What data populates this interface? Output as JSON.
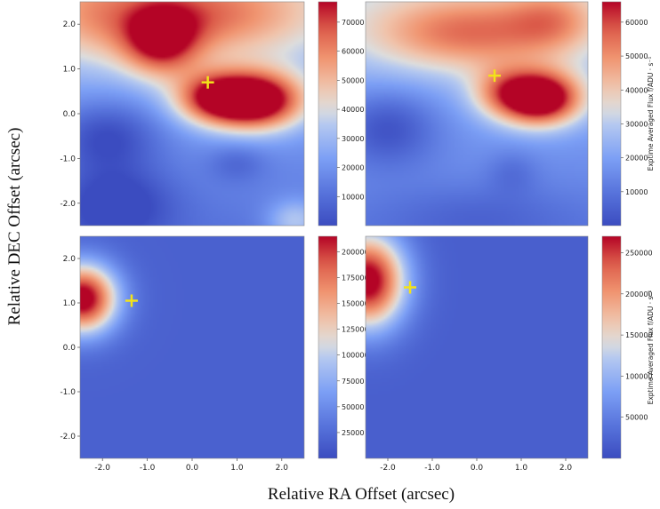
{
  "figure": {
    "xlabel": "Relative RA Offset (arcsec)",
    "ylabel": "Relative DEC Offset (arcsec)",
    "colorbar_label": "Exptime Averaged Flux f/ADU · s⁻¹",
    "colormap": "coolwarm",
    "marker_color": "#f2e21a"
  },
  "chart_data": [
    {
      "type": "heatmap",
      "panel": "top-left",
      "xlim": [
        -2.5,
        2.5
      ],
      "ylim": [
        -2.5,
        2.5
      ],
      "xticks": [],
      "xticklabels": [],
      "yticks": [
        2.0,
        1.0,
        0.0,
        -1.0,
        -2.0
      ],
      "yticklabels": [
        "2.0",
        "1.0",
        "0.0",
        "-1.0",
        "-2.0"
      ],
      "colorbar_range": [
        0,
        77000
      ],
      "colorbar_ticks": [
        10000,
        20000,
        30000,
        40000,
        50000,
        60000,
        70000
      ],
      "colorbar_ticklabels": [
        "10000",
        "20000",
        "30000",
        "40000",
        "50000",
        "60000",
        "70000"
      ],
      "colorbar_label": "",
      "marker": {
        "x": 0.35,
        "y": 0.7
      },
      "sources": [
        {
          "x": 1.4,
          "y": 0.3,
          "sx": 0.75,
          "sy": 0.45,
          "amp": 0.95
        },
        {
          "x": 0.4,
          "y": 0.35,
          "sx": 0.6,
          "sy": 0.4,
          "amp": 0.5
        },
        {
          "x": -0.7,
          "y": 1.6,
          "sx": 0.6,
          "sy": 0.55,
          "amp": 0.55
        },
        {
          "x": 0.2,
          "y": 2.2,
          "sx": 1.8,
          "sy": 0.7,
          "amp": 0.45
        },
        {
          "x": -2.4,
          "y": 2.2,
          "sx": 0.9,
          "sy": 0.8,
          "amp": 0.2
        },
        {
          "x": 2.3,
          "y": -2.4,
          "sx": 0.45,
          "sy": 0.35,
          "amp": 0.28
        }
      ],
      "dips": [
        {
          "x": -1.9,
          "y": -0.5,
          "sx": 0.8,
          "sy": 0.55,
          "amp": 0.25
        },
        {
          "x": -1.7,
          "y": -2.0,
          "sx": 0.9,
          "sy": 0.6,
          "amp": 0.25
        },
        {
          "x": 1.0,
          "y": -1.1,
          "sx": 0.45,
          "sy": 0.3,
          "amp": 0.12
        }
      ],
      "base": 0.28,
      "gradient": 0.05
    },
    {
      "type": "heatmap",
      "panel": "top-right",
      "xlim": [
        -2.5,
        2.5
      ],
      "ylim": [
        -2.5,
        2.5
      ],
      "xticks": [],
      "xticklabels": [],
      "yticks": [],
      "yticklabels": [],
      "colorbar_range": [
        0,
        66000
      ],
      "colorbar_ticks": [
        10000,
        20000,
        30000,
        40000,
        50000,
        60000
      ],
      "colorbar_ticklabels": [
        "10000",
        "20000",
        "30000",
        "40000",
        "50000",
        "60000"
      ],
      "colorbar_label": "Exptime Averaged Flux f/ADU · s⁻¹",
      "marker": {
        "x": 0.4,
        "y": 0.85
      },
      "sources": [
        {
          "x": 1.4,
          "y": 0.35,
          "sx": 0.65,
          "sy": 0.42,
          "amp": 0.95
        },
        {
          "x": -0.2,
          "y": 1.8,
          "sx": 1.6,
          "sy": 0.6,
          "amp": 0.45
        },
        {
          "x": 1.7,
          "y": 2.1,
          "sx": 0.7,
          "sy": 0.5,
          "amp": 0.25
        },
        {
          "x": 0.5,
          "y": 0.5,
          "sx": 0.5,
          "sy": 0.4,
          "amp": 0.25
        }
      ],
      "dips": [
        {
          "x": -2.0,
          "y": -0.3,
          "sx": 0.8,
          "sy": 0.6,
          "amp": 0.25
        },
        {
          "x": 0.8,
          "y": -1.3,
          "sx": 0.4,
          "sy": 0.35,
          "amp": 0.1
        },
        {
          "x": 0.0,
          "y": -2.3,
          "sx": 1.5,
          "sy": 0.5,
          "amp": 0.1
        }
      ],
      "base": 0.3,
      "gradient": 0.05
    },
    {
      "type": "heatmap",
      "panel": "bottom-left",
      "xlim": [
        -2.5,
        2.5
      ],
      "ylim": [
        -2.5,
        2.5
      ],
      "xticks": [
        -2.0,
        -1.0,
        0.0,
        1.0,
        2.0
      ],
      "xticklabels": [
        "-2.0",
        "-1.0",
        "0.0",
        "1.0",
        "2.0"
      ],
      "yticks": [
        2.0,
        1.0,
        0.0,
        -1.0,
        -2.0
      ],
      "yticklabels": [
        "2.0",
        "1.0",
        "0.0",
        "-1.0",
        "-2.0"
      ],
      "colorbar_range": [
        0,
        215000
      ],
      "colorbar_ticks": [
        25000,
        50000,
        75000,
        100000,
        125000,
        150000,
        175000,
        200000
      ],
      "colorbar_ticklabels": [
        "25000",
        "50000",
        "75000",
        "100000",
        "125000",
        "150000",
        "175000",
        "200000"
      ],
      "colorbar_label": "",
      "marker": {
        "x": -1.35,
        "y": 1.05
      },
      "sources": [
        {
          "x": -2.45,
          "y": 1.1,
          "sx": 0.55,
          "sy": 0.55,
          "amp": 1.0
        }
      ],
      "dips": [],
      "base": 0.08,
      "gradient": 0.0
    },
    {
      "type": "heatmap",
      "panel": "bottom-right",
      "xlim": [
        -2.5,
        2.5
      ],
      "ylim": [
        -2.5,
        2.5
      ],
      "xticks": [
        -2.0,
        -1.0,
        0.0,
        1.0,
        2.0
      ],
      "xticklabels": [
        "-2.0",
        "-1.0",
        "0.0",
        "1.0",
        "2.0"
      ],
      "yticks": [],
      "yticklabels": [],
      "colorbar_range": [
        0,
        270000
      ],
      "colorbar_ticks": [
        50000,
        100000,
        150000,
        200000,
        250000
      ],
      "colorbar_ticklabels": [
        "50000",
        "100000",
        "150000",
        "200000",
        "250000"
      ],
      "colorbar_label": "Exptime Averaged Flux f/ADU · s⁻¹",
      "marker": {
        "x": -1.5,
        "y": 1.35
      },
      "sources": [
        {
          "x": -2.45,
          "y": 1.5,
          "sx": 0.6,
          "sy": 0.75,
          "amp": 1.0
        }
      ],
      "dips": [],
      "base": 0.07,
      "gradient": 0.0
    }
  ]
}
